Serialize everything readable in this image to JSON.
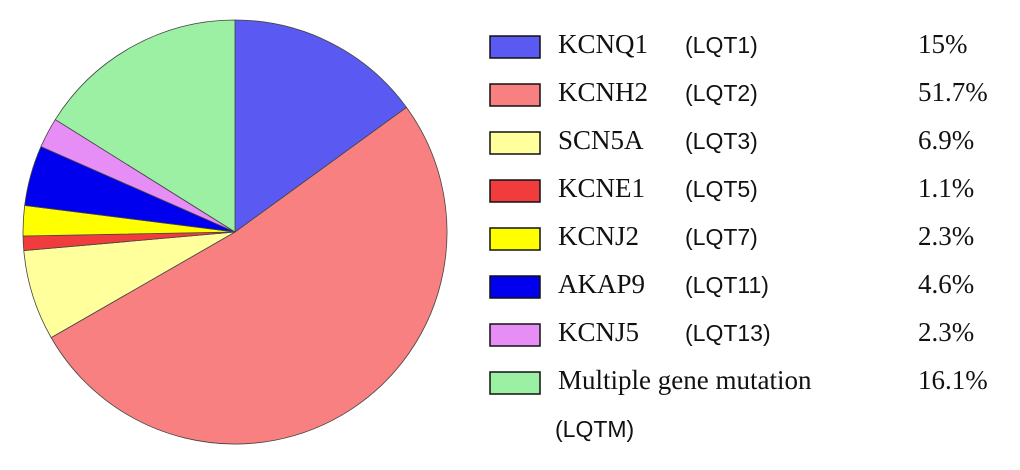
{
  "chart_data": {
    "type": "pie",
    "categories": [
      "KCNQ1",
      "KCNH2",
      "SCN5A",
      "KCNE1",
      "KCNJ2",
      "AKAP9",
      "KCNJ5",
      "Multiple gene mutation"
    ],
    "subtypes": [
      "(LQT1)",
      "(LQT2)",
      "(LQT3)",
      "(LQT5)",
      "(LQT7)",
      "(LQT11)",
      "(LQT13)",
      "(LQTM)"
    ],
    "values": [
      15,
      51.7,
      6.9,
      1.1,
      2.3,
      4.6,
      2.3,
      16.1
    ],
    "value_labels": [
      "15%",
      "51.7%",
      "6.9%",
      "1.1%",
      "2.3%",
      "4.6%",
      "2.3%",
      "16.1%"
    ],
    "colors": [
      "#5a5af2",
      "#f98080",
      "#ffff9c",
      "#f03c3c",
      "#ffff00",
      "#0000ee",
      "#e68ef5",
      "#9cf0a3"
    ]
  }
}
